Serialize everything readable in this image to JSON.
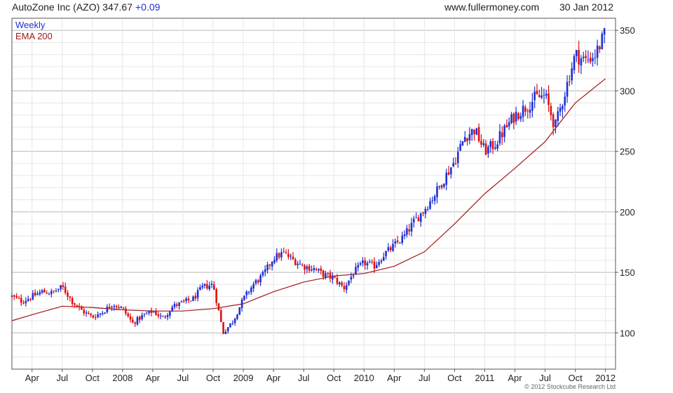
{
  "header": {
    "title": "AutoZone Inc (AZO)",
    "price": "347.67",
    "change": "+0.09",
    "site": "www.fullermoney.com",
    "date": "30 Jan 2012"
  },
  "copyright": "© 2012 Stockcube Research Ltd",
  "chart_data": {
    "type": "candlestick",
    "legend": [
      {
        "label": "Weekly",
        "color": "#1f2fd6"
      },
      {
        "label": "EMA 200",
        "color": "#a01818"
      }
    ],
    "colors": {
      "up": "#1f2fd6",
      "down": "#e01010",
      "ema": "#a01818",
      "grid": "#cccccc",
      "axis": "#555555"
    },
    "x_labels": [
      {
        "label": "Apr",
        "date": "2007-04"
      },
      {
        "label": "Jul",
        "date": "2007-07"
      },
      {
        "label": "Oct",
        "date": "2007-10"
      },
      {
        "label": "2008",
        "date": "2008-01"
      },
      {
        "label": "Apr",
        "date": "2008-04"
      },
      {
        "label": "Jul",
        "date": "2008-07"
      },
      {
        "label": "Oct",
        "date": "2008-10"
      },
      {
        "label": "2009",
        "date": "2009-01"
      },
      {
        "label": "Apr",
        "date": "2009-04"
      },
      {
        "label": "Jul",
        "date": "2009-07"
      },
      {
        "label": "Oct",
        "date": "2009-10"
      },
      {
        "label": "2010",
        "date": "2010-01"
      },
      {
        "label": "Apr",
        "date": "2010-04"
      },
      {
        "label": "Jul",
        "date": "2010-07"
      },
      {
        "label": "Oct",
        "date": "2010-10"
      },
      {
        "label": "2011",
        "date": "2011-01"
      },
      {
        "label": "Apr",
        "date": "2011-04"
      },
      {
        "label": "Jul",
        "date": "2011-07"
      },
      {
        "label": "Oct",
        "date": "2011-10"
      },
      {
        "label": "2012",
        "date": "2012-01"
      }
    ],
    "x_range": [
      "2007-02",
      "2012-02"
    ],
    "y_ticks": [
      100,
      150,
      200,
      250,
      300,
      350
    ],
    "y_range": [
      70,
      360
    ],
    "grid": true,
    "legend_position": "top-left",
    "close_series": [
      [
        "2007-02",
        130
      ],
      [
        "2007-03",
        126
      ],
      [
        "2007-04",
        130
      ],
      [
        "2007-05",
        134
      ],
      [
        "2007-06",
        133
      ],
      [
        "2007-07",
        138
      ],
      [
        "2007-08",
        126
      ],
      [
        "2007-09",
        118
      ],
      [
        "2007-10",
        113
      ],
      [
        "2007-11",
        117
      ],
      [
        "2007-12",
        124
      ],
      [
        "2008-01",
        120
      ],
      [
        "2008-02",
        108
      ],
      [
        "2008-03",
        114
      ],
      [
        "2008-04",
        118
      ],
      [
        "2008-05",
        112
      ],
      [
        "2008-06",
        122
      ],
      [
        "2008-07",
        125
      ],
      [
        "2008-08",
        128
      ],
      [
        "2008-09",
        138
      ],
      [
        "2008-10",
        140
      ],
      [
        "2008-11",
        100
      ],
      [
        "2008-12",
        110
      ],
      [
        "2009-01",
        128
      ],
      [
        "2009-02",
        140
      ],
      [
        "2009-03",
        148
      ],
      [
        "2009-04",
        162
      ],
      [
        "2009-05",
        166
      ],
      [
        "2009-06",
        160
      ],
      [
        "2009-07",
        155
      ],
      [
        "2009-08",
        153
      ],
      [
        "2009-09",
        148
      ],
      [
        "2009-10",
        145
      ],
      [
        "2009-11",
        137
      ],
      [
        "2009-12",
        150
      ],
      [
        "2010-01",
        158
      ],
      [
        "2010-02",
        155
      ],
      [
        "2010-03",
        165
      ],
      [
        "2010-04",
        172
      ],
      [
        "2010-05",
        180
      ],
      [
        "2010-06",
        192
      ],
      [
        "2010-07",
        202
      ],
      [
        "2010-08",
        214
      ],
      [
        "2010-09",
        228
      ],
      [
        "2010-10",
        242
      ],
      [
        "2010-11",
        262
      ],
      [
        "2010-12",
        268
      ],
      [
        "2011-01",
        250
      ],
      [
        "2011-02",
        256
      ],
      [
        "2011-03",
        268
      ],
      [
        "2011-04",
        280
      ],
      [
        "2011-05",
        286
      ],
      [
        "2011-06",
        294
      ],
      [
        "2011-07",
        296
      ],
      [
        "2011-08",
        270
      ],
      [
        "2011-09",
        300
      ],
      [
        "2011-10",
        330
      ],
      [
        "2011-11",
        325
      ],
      [
        "2011-12",
        330
      ],
      [
        "2012-01",
        347.67
      ]
    ],
    "ema_series": [
      [
        "2007-02",
        110
      ],
      [
        "2007-04",
        115
      ],
      [
        "2007-07",
        122
      ],
      [
        "2007-10",
        121
      ],
      [
        "2008-01",
        119
      ],
      [
        "2008-04",
        118
      ],
      [
        "2008-07",
        118
      ],
      [
        "2008-10",
        120
      ],
      [
        "2009-01",
        124
      ],
      [
        "2009-04",
        134
      ],
      [
        "2009-07",
        142
      ],
      [
        "2009-10",
        147
      ],
      [
        "2010-01",
        149
      ],
      [
        "2010-04",
        155
      ],
      [
        "2010-07",
        167
      ],
      [
        "2010-10",
        190
      ],
      [
        "2011-01",
        215
      ],
      [
        "2011-04",
        236
      ],
      [
        "2011-07",
        258
      ],
      [
        "2011-10",
        290
      ],
      [
        "2012-01",
        310
      ]
    ]
  }
}
